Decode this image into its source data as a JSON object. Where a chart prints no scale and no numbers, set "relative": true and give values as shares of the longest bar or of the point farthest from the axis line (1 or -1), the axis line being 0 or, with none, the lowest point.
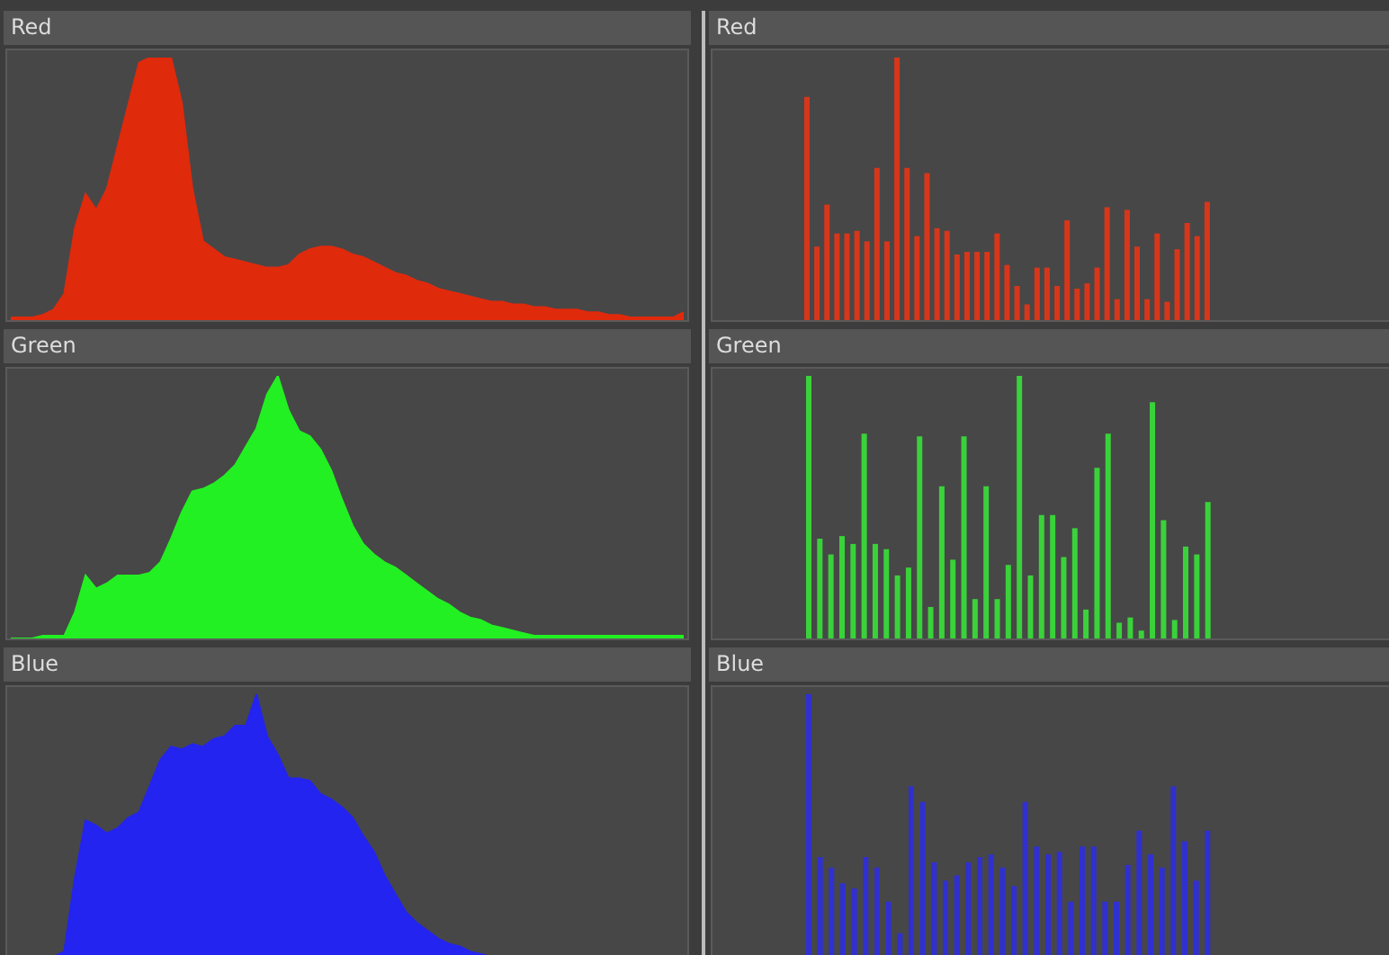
{
  "chart_data": [
    {
      "type": "area",
      "title": "Red",
      "relative": true,
      "tick_labels": false,
      "color": "#e02a0c",
      "categories": [
        null,
        null,
        null,
        null,
        null,
        null,
        null,
        null,
        null,
        null,
        null,
        null,
        null,
        null,
        null,
        null,
        null,
        null,
        null,
        null,
        null,
        null,
        null,
        null,
        null,
        null,
        null,
        null,
        null,
        null,
        null,
        null,
        null,
        null,
        null,
        null,
        null,
        null,
        null,
        null,
        null,
        null,
        null,
        null,
        null,
        null,
        null,
        null,
        null,
        null,
        null,
        null,
        null,
        null,
        null,
        null,
        null,
        null,
        null,
        null,
        null,
        null,
        null,
        null
      ],
      "values": [
        0.01,
        0.01,
        0.01,
        0.02,
        0.04,
        0.1,
        0.35,
        0.48,
        0.42,
        0.5,
        0.66,
        0.82,
        0.98,
        1,
        1,
        1,
        0.83,
        0.5,
        0.3,
        0.27,
        0.24,
        0.23,
        0.22,
        0.21,
        0.2,
        0.2,
        0.21,
        0.25,
        0.27,
        0.28,
        0.28,
        0.27,
        0.25,
        0.24,
        0.22,
        0.2,
        0.18,
        0.17,
        0.15,
        0.14,
        0.12,
        0.11,
        0.1,
        0.09,
        0.08,
        0.07,
        0.07,
        0.06,
        0.06,
        0.05,
        0.05,
        0.04,
        0.04,
        0.04,
        0.03,
        0.03,
        0.02,
        0.02,
        0.01,
        0.01,
        0.01,
        0.01,
        0.01,
        0.03
      ]
    },
    {
      "type": "bar",
      "title": "Red",
      "relative": true,
      "tick_labels": false,
      "color": "#d8361a",
      "categories": [
        null,
        null,
        null,
        null,
        null,
        null,
        null,
        null,
        null,
        null,
        null,
        null,
        null,
        null,
        null,
        null,
        null,
        null,
        null,
        null,
        null,
        null,
        null,
        null,
        null,
        null,
        null,
        null,
        null,
        null,
        null,
        null,
        null,
        null,
        null,
        null,
        null,
        null,
        null,
        null,
        null
      ],
      "values": [
        0.85,
        0.28,
        0.44,
        0.33,
        0.33,
        0.34,
        0.3,
        0.58,
        0.3,
        1,
        0.58,
        0.32,
        0.56,
        0.35,
        0.34,
        0.25,
        0.26,
        0.26,
        0.26,
        0.33,
        0.21,
        0.13,
        0.06,
        0.2,
        0.2,
        0.13,
        0.38,
        0.12,
        0.14,
        0.2,
        0.43,
        0.08,
        0.42,
        0.28,
        0.08,
        0.33,
        0.07,
        0.27,
        0.37,
        0.32,
        0.45
      ]
    },
    {
      "type": "area",
      "title": "Green",
      "relative": true,
      "tick_labels": false,
      "color": "#22f022",
      "categories": [
        null,
        null,
        null,
        null,
        null,
        null,
        null,
        null,
        null,
        null,
        null,
        null,
        null,
        null,
        null,
        null,
        null,
        null,
        null,
        null,
        null,
        null,
        null,
        null,
        null,
        null,
        null,
        null,
        null,
        null,
        null,
        null,
        null,
        null,
        null,
        null,
        null,
        null,
        null,
        null,
        null,
        null,
        null,
        null,
        null,
        null,
        null,
        null,
        null,
        null,
        null,
        null,
        null,
        null,
        null,
        null,
        null,
        null,
        null,
        null,
        null,
        null,
        null,
        null
      ],
      "values": [
        0,
        0,
        0,
        0.01,
        0.01,
        0.01,
        0.1,
        0.24,
        0.19,
        0.21,
        0.24,
        0.24,
        0.24,
        0.25,
        0.29,
        0.38,
        0.48,
        0.56,
        0.57,
        0.59,
        0.62,
        0.66,
        0.73,
        0.8,
        0.93,
        1,
        0.87,
        0.79,
        0.77,
        0.72,
        0.64,
        0.53,
        0.43,
        0.36,
        0.32,
        0.29,
        0.27,
        0.24,
        0.21,
        0.18,
        0.15,
        0.13,
        0.1,
        0.08,
        0.07,
        0.05,
        0.04,
        0.03,
        0.02,
        0.01,
        0.01,
        0.01,
        0.01,
        0.01,
        0.01,
        0.01,
        0.01,
        0.01,
        0.01,
        0.01,
        0.01,
        0.01,
        0.01,
        0.01
      ]
    },
    {
      "type": "bar",
      "title": "Green",
      "relative": true,
      "tick_labels": false,
      "color": "#3ad23a",
      "categories": [
        null,
        null,
        null,
        null,
        null,
        null,
        null,
        null,
        null,
        null,
        null,
        null,
        null,
        null,
        null,
        null,
        null,
        null,
        null,
        null,
        null,
        null,
        null,
        null,
        null,
        null,
        null,
        null,
        null,
        null,
        null,
        null,
        null,
        null,
        null,
        null,
        null
      ],
      "values": [
        1,
        0.38,
        0.32,
        0.39,
        0.36,
        0.78,
        0.36,
        0.34,
        0.24,
        0.27,
        0.77,
        0.12,
        0.58,
        0.3,
        0.77,
        0.15,
        0.58,
        0.15,
        0.28,
        1,
        0.24,
        0.47,
        0.47,
        0.31,
        0.42,
        0.11,
        0.65,
        0.78,
        0.06,
        0.08,
        0.03,
        0.9,
        0.45,
        0.07,
        0.35,
        0.32,
        0.52
      ]
    },
    {
      "type": "area",
      "title": "Blue",
      "relative": true,
      "tick_labels": false,
      "color": "#2424f0",
      "categories": [
        null,
        null,
        null,
        null,
        null,
        null,
        null,
        null,
        null,
        null,
        null,
        null,
        null,
        null,
        null,
        null,
        null,
        null,
        null,
        null,
        null,
        null,
        null,
        null,
        null,
        null,
        null,
        null,
        null,
        null,
        null,
        null,
        null,
        null,
        null,
        null,
        null,
        null,
        null,
        null,
        null,
        null,
        null,
        null,
        null,
        null,
        null,
        null,
        null,
        null,
        null,
        null,
        null,
        null,
        null,
        null,
        null,
        null,
        null,
        null,
        null,
        null,
        null,
        null
      ],
      "values": [
        0,
        0,
        0,
        0,
        0,
        0.02,
        0.3,
        0.52,
        0.5,
        0.47,
        0.49,
        0.53,
        0.55,
        0.65,
        0.75,
        0.8,
        0.79,
        0.81,
        0.8,
        0.83,
        0.84,
        0.88,
        0.88,
        1,
        0.84,
        0.77,
        0.68,
        0.68,
        0.67,
        0.62,
        0.6,
        0.57,
        0.53,
        0.46,
        0.4,
        0.31,
        0.24,
        0.17,
        0.13,
        0.1,
        0.07,
        0.05,
        0.04,
        0.02,
        0.01,
        0,
        0,
        0,
        0,
        0,
        0,
        0,
        0,
        0,
        0,
        0,
        0,
        0,
        0,
        0,
        0,
        0,
        0,
        0
      ]
    },
    {
      "type": "bar",
      "title": "Blue",
      "relative": true,
      "tick_labels": false,
      "color": "#3030d0",
      "categories": [
        null,
        null,
        null,
        null,
        null,
        null,
        null,
        null,
        null,
        null,
        null,
        null,
        null,
        null,
        null,
        null,
        null,
        null,
        null,
        null,
        null,
        null,
        null,
        null,
        null,
        null,
        null,
        null,
        null,
        null,
        null,
        null,
        null,
        null,
        null,
        null
      ],
      "values": [
        1,
        0.38,
        0.34,
        0.28,
        0.26,
        0.38,
        0.34,
        0.21,
        0.09,
        0.65,
        0.59,
        0.36,
        0.29,
        0.31,
        0.36,
        0.38,
        0.39,
        0.34,
        0.27,
        0.59,
        0.42,
        0.39,
        0.4,
        0.21,
        0.42,
        0.42,
        0.21,
        0.21,
        0.35,
        0.48,
        0.39,
        0.34,
        0.65,
        0.44,
        0.29,
        0.48
      ]
    }
  ]
}
